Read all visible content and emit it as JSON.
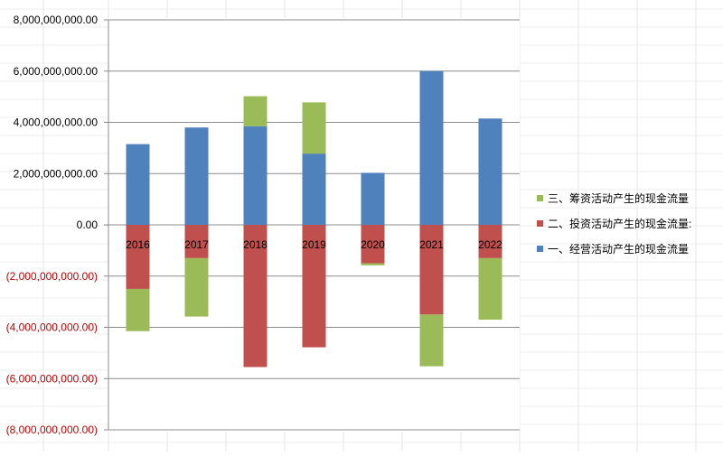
{
  "chart_data": {
    "type": "bar",
    "stacked": true,
    "categories": [
      "2016",
      "2017",
      "2018",
      "2019",
      "2020",
      "2021",
      "2022"
    ],
    "series": [
      {
        "name": "一、经营活动产生的现金流量",
        "color": "#4F81BD",
        "values": [
          3150000000,
          3800000000,
          3850000000,
          2780000000,
          2030000000,
          6000000000,
          4150000000
        ]
      },
      {
        "name": "二、投资活动产生的现金流量:",
        "color": "#C0504D",
        "values": [
          -2500000000,
          -1300000000,
          -5550000000,
          -4780000000,
          -1500000000,
          -3500000000,
          -1300000000
        ]
      },
      {
        "name": "三、筹资活动产生的现金流量",
        "color": "#9BBB59",
        "values": [
          -1650000000,
          -2280000000,
          1170000000,
          2000000000,
          -80000000,
          -2020000000,
          -2400000000
        ]
      }
    ],
    "y_ticks": [
      {
        "value": 8000000000,
        "label": "8,000,000,000.00"
      },
      {
        "value": 6000000000,
        "label": "6,000,000,000.00"
      },
      {
        "value": 4000000000,
        "label": "4,000,000,000.00"
      },
      {
        "value": 2000000000,
        "label": "2,000,000,000.00"
      },
      {
        "value": 0,
        "label": "0.00"
      },
      {
        "value": -2000000000,
        "label": "(2,000,000,000.00)"
      },
      {
        "value": -4000000000,
        "label": "(4,000,000,000.00)"
      },
      {
        "value": -6000000000,
        "label": "(6,000,000,000.00)"
      },
      {
        "value": -8000000000,
        "label": "(8,000,000,000.00)"
      }
    ],
    "ylim": [
      -8000000000,
      8000000000
    ],
    "negative_label_color": "#C00000",
    "grid": true,
    "legend_position": "right",
    "legend_order": [
      2,
      1,
      0
    ]
  }
}
